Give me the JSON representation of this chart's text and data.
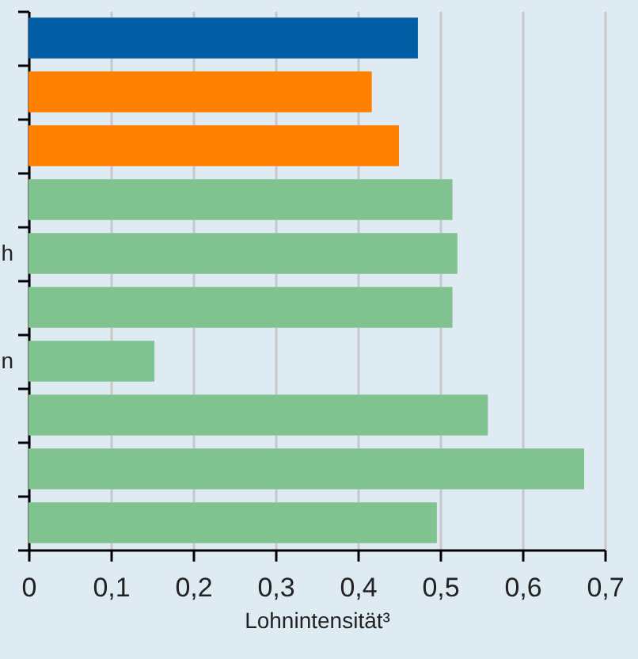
{
  "chart_data": {
    "type": "bar",
    "orientation": "horizontal",
    "categories": [
      null,
      null,
      null,
      null,
      "h",
      null,
      "n",
      null,
      null,
      null
    ],
    "values": [
      0.473,
      0.417,
      0.45,
      0.515,
      0.521,
      0.515,
      0.153,
      0.558,
      0.675,
      0.496
    ],
    "colors": [
      "#005da3",
      "#ff8000",
      "#ff8000",
      "#80c391",
      "#80c391",
      "#80c391",
      "#80c391",
      "#80c391",
      "#80c391",
      "#80c391"
    ],
    "xlabel": "Lohnintensität³",
    "xlim": [
      0,
      0.7
    ],
    "xticks": [
      0,
      {
        "value": 0.1,
        "label": "0,1"
      },
      {
        "value": 0.2,
        "label": "0,2"
      },
      {
        "value": 0.3,
        "label": "0,3"
      },
      {
        "value": 0.4,
        "label": "0,4"
      },
      {
        "value": 0.5,
        "label": "0,5"
      },
      {
        "value": 0.6,
        "label": "0,6"
      },
      {
        "value": 0.7,
        "label": "0,7"
      }
    ],
    "grid": "x"
  }
}
